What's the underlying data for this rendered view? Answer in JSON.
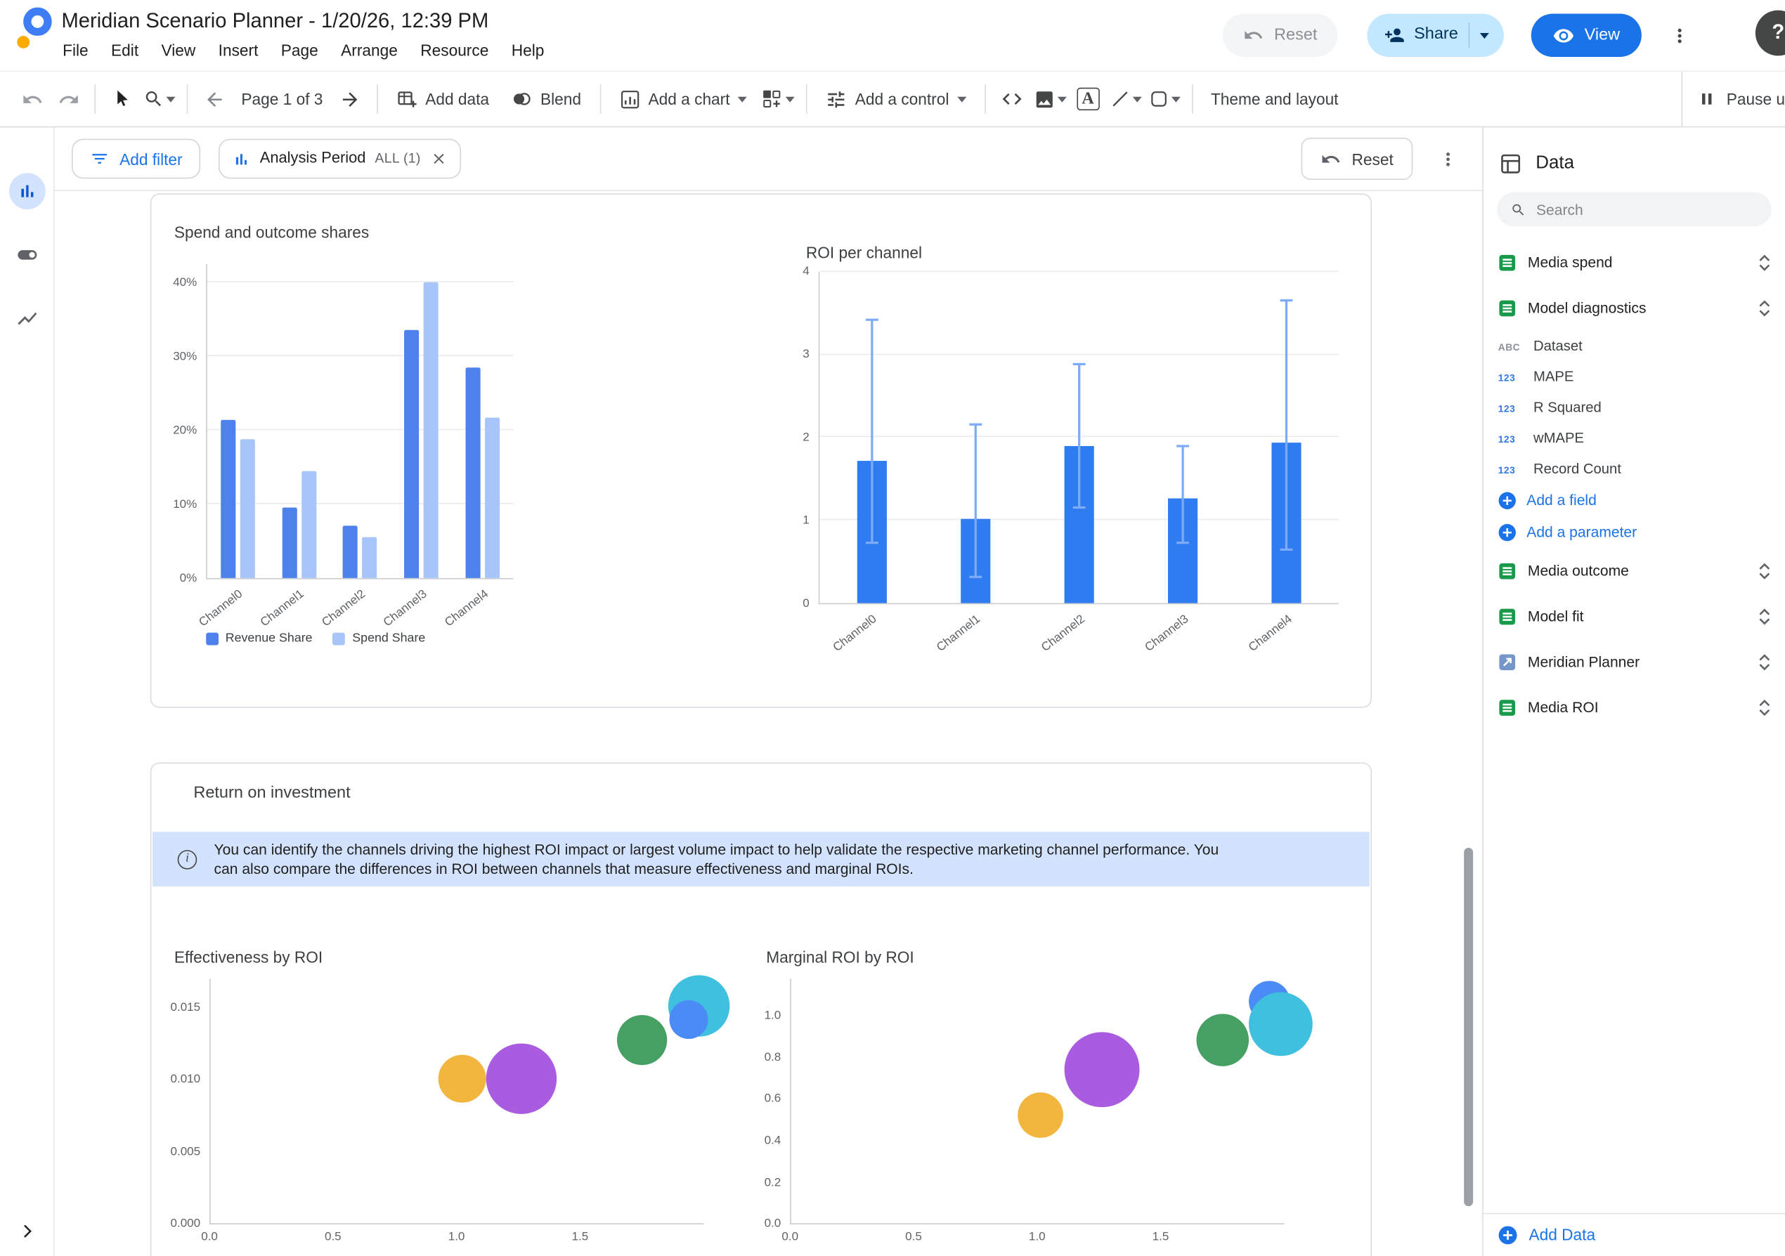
{
  "header": {
    "title": "Meridian Scenario Planner - 1/20/26, 12:39 PM",
    "menus": [
      "File",
      "Edit",
      "View",
      "Insert",
      "Page",
      "Arrange",
      "Resource",
      "Help"
    ],
    "reset_label": "Reset",
    "share_label": "Share",
    "view_label": "View",
    "help_glyph": "?"
  },
  "toolbar": {
    "page_indicator": "Page 1 of 3",
    "add_data_label": "Add data",
    "blend_label": "Blend",
    "add_chart_label": "Add a chart",
    "add_control_label": "Add a control",
    "text_tool_glyph": "A",
    "theme_layout_label": "Theme and layout",
    "pause_label": "Pause u"
  },
  "filter_bar": {
    "add_filter_label": "Add filter",
    "chip_label": "Analysis Period",
    "chip_meta": "ALL (1)",
    "reset_label": "Reset"
  },
  "report": {
    "section_title": "Return on investment",
    "banner_text": "You can identify the channels driving the highest ROI impact or largest volume impact to help validate the respective marketing channel performance. You can also compare the differences in ROI between channels that measure effectiveness and marginal ROIs."
  },
  "data_panel": {
    "title": "Data",
    "search_placeholder": "Search",
    "items": [
      {
        "label": "Media spend",
        "icon": "sheet"
      },
      {
        "label": "Model diagnostics",
        "icon": "sheet",
        "expanded": true,
        "fields": [
          {
            "badge": "ABC",
            "label": "Dataset"
          },
          {
            "badge": "123",
            "label": "MAPE"
          },
          {
            "badge": "123",
            "label": "R Squared"
          },
          {
            "badge": "123",
            "label": "wMAPE"
          },
          {
            "badge": "123",
            "label": "Record Count"
          }
        ],
        "actions": [
          "Add a field",
          "Add a parameter"
        ]
      },
      {
        "label": "Media outcome",
        "icon": "sheet"
      },
      {
        "label": "Model fit",
        "icon": "sheet"
      },
      {
        "label": "Meridian Planner",
        "icon": "connector"
      },
      {
        "label": "Media ROI",
        "icon": "sheet"
      }
    ],
    "add_data_label": "Add Data"
  },
  "chart_data": [
    {
      "type": "bar",
      "title": "Spend and outcome shares",
      "categories": [
        "Channel0",
        "Channel1",
        "Channel2",
        "Channel3",
        "Channel4"
      ],
      "series": [
        {
          "name": "Revenue Share",
          "color": "#4d82ec",
          "values": [
            21.4,
            9.5,
            7.1,
            33.5,
            28.5
          ]
        },
        {
          "name": "Spend Share",
          "color": "#a7c5f9",
          "values": [
            18.8,
            14.5,
            5.5,
            40.0,
            21.7
          ]
        }
      ],
      "ymax": 42.5,
      "yticks": [
        {
          "v": 0,
          "label": "0%"
        },
        {
          "v": 10,
          "label": "10%"
        },
        {
          "v": 20,
          "label": "20%"
        },
        {
          "v": 30,
          "label": "30%"
        },
        {
          "v": 40,
          "label": "40%"
        }
      ],
      "legend_position": "bottom",
      "grid": true
    },
    {
      "type": "bar",
      "title": "ROI per channel",
      "categories": [
        "Channel0",
        "Channel1",
        "Channel2",
        "Channel3",
        "Channel4"
      ],
      "series": [
        {
          "name": "ROI",
          "color": "#2e7cf0",
          "values": [
            1.71,
            1.01,
            1.9,
            1.26,
            1.94
          ]
        }
      ],
      "error_low": [
        0.73,
        0.31,
        1.15,
        0.73,
        0.64
      ],
      "error_high": [
        3.42,
        2.16,
        2.89,
        1.9,
        3.66
      ],
      "error_color": "#7dabf8",
      "ymax": 4,
      "yticks": [
        {
          "v": 0,
          "label": "0"
        },
        {
          "v": 1,
          "label": "1"
        },
        {
          "v": 2,
          "label": "2"
        },
        {
          "v": 3,
          "label": "3"
        },
        {
          "v": 4,
          "label": "4"
        }
      ],
      "grid": true
    },
    {
      "type": "scatter",
      "title": "Effectiveness by ROI",
      "xmax": 2.0,
      "ymax": 0.017,
      "xticks": [
        {
          "v": 0,
          "label": "0.0"
        },
        {
          "v": 0.5,
          "label": "0.5"
        },
        {
          "v": 1,
          "label": "1.0"
        },
        {
          "v": 1.5,
          "label": "1.5"
        }
      ],
      "yticks": [
        {
          "v": 0,
          "label": "0.000"
        },
        {
          "v": 0.005,
          "label": "0.005"
        },
        {
          "v": 0.01,
          "label": "0.010"
        },
        {
          "v": 0.015,
          "label": "0.015"
        }
      ],
      "points": [
        {
          "color": "#f2b63e",
          "x": 1.02,
          "y": 0.01,
          "r": 21
        },
        {
          "color": "#a95ce0",
          "x": 1.26,
          "y": 0.01,
          "r": 31
        },
        {
          "color": "#47a063",
          "x": 1.75,
          "y": 0.0127,
          "r": 22
        },
        {
          "color": "#3fc0de",
          "x": 1.98,
          "y": 0.0151,
          "r": 27
        },
        {
          "color": "#4b8bf5",
          "x": 1.94,
          "y": 0.0141,
          "r": 17
        }
      ],
      "grid": false
    },
    {
      "type": "scatter",
      "title": "Marginal ROI by ROI",
      "xmax": 2.0,
      "ymax": 1.18,
      "xticks": [
        {
          "v": 0,
          "label": "0.0"
        },
        {
          "v": 0.5,
          "label": "0.5"
        },
        {
          "v": 1,
          "label": "1.0"
        },
        {
          "v": 1.5,
          "label": "1.5"
        }
      ],
      "yticks": [
        {
          "v": 0,
          "label": "0.0"
        },
        {
          "v": 0.2,
          "label": "0.2"
        },
        {
          "v": 0.4,
          "label": "0.4"
        },
        {
          "v": 0.6,
          "label": "0.6"
        },
        {
          "v": 0.8,
          "label": "0.8"
        },
        {
          "v": 1.0,
          "label": "1.0"
        }
      ],
      "points": [
        {
          "color": "#f2b63e",
          "x": 1.01,
          "y": 0.52,
          "r": 20
        },
        {
          "color": "#a95ce0",
          "x": 1.26,
          "y": 0.74,
          "r": 33
        },
        {
          "color": "#47a063",
          "x": 1.75,
          "y": 0.885,
          "r": 23
        },
        {
          "color": "#4b8bf5",
          "x": 1.94,
          "y": 1.07,
          "r": 18
        },
        {
          "color": "#3fc0de",
          "x": 1.985,
          "y": 0.96,
          "r": 28
        }
      ],
      "grid": false
    }
  ]
}
